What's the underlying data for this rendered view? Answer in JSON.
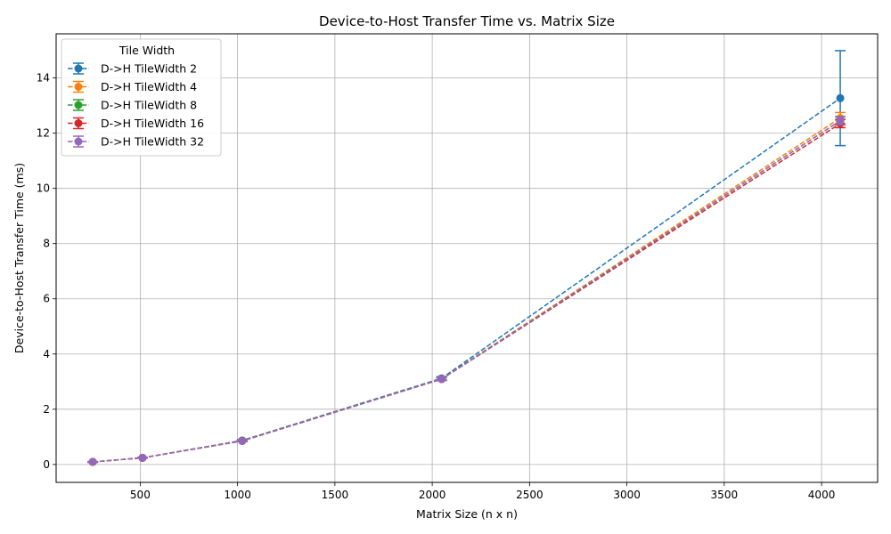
{
  "chart_data": {
    "type": "line",
    "title": "Device-to-Host Transfer Time vs. Matrix Size",
    "xlabel": "Matrix Size (n x n)",
    "ylabel": "Device-to-Host Transfer Time (ms)",
    "xlim": [
      68,
      4288
    ],
    "ylim": [
      -0.65,
      15.6
    ],
    "xticks": [
      500,
      1000,
      1500,
      2000,
      2500,
      3000,
      3500,
      4000
    ],
    "yticks": [
      0,
      2,
      4,
      6,
      8,
      10,
      12,
      14
    ],
    "grid": true,
    "legend": {
      "title": "Tile Width",
      "placement": "top-left"
    },
    "x": [
      256,
      512,
      1024,
      2048,
      4096
    ],
    "series": [
      {
        "name": "D->H TileWidth 2",
        "color": "#1f77b4",
        "values": [
          0.09,
          0.24,
          0.87,
          3.12,
          13.27
        ],
        "errors": [
          0.01,
          0.01,
          0.03,
          0.06,
          1.72
        ]
      },
      {
        "name": "D->H TileWidth 4",
        "color": "#ff7f0e",
        "values": [
          0.09,
          0.24,
          0.86,
          3.1,
          12.55
        ],
        "errors": [
          0.01,
          0.01,
          0.02,
          0.05,
          0.2
        ]
      },
      {
        "name": "D->H TileWidth 8",
        "color": "#2ca02c",
        "values": [
          0.09,
          0.24,
          0.86,
          3.1,
          12.45
        ],
        "errors": [
          0.01,
          0.01,
          0.02,
          0.05,
          0.15
        ]
      },
      {
        "name": "D->H TileWidth 16",
        "color": "#d62728",
        "values": [
          0.09,
          0.24,
          0.85,
          3.09,
          12.35
        ],
        "errors": [
          0.01,
          0.01,
          0.02,
          0.05,
          0.15
        ]
      },
      {
        "name": "D->H TileWidth 32",
        "color": "#9467bd",
        "values": [
          0.09,
          0.24,
          0.85,
          3.09,
          12.45
        ],
        "errors": [
          0.01,
          0.01,
          0.02,
          0.05,
          0.15
        ]
      }
    ]
  }
}
